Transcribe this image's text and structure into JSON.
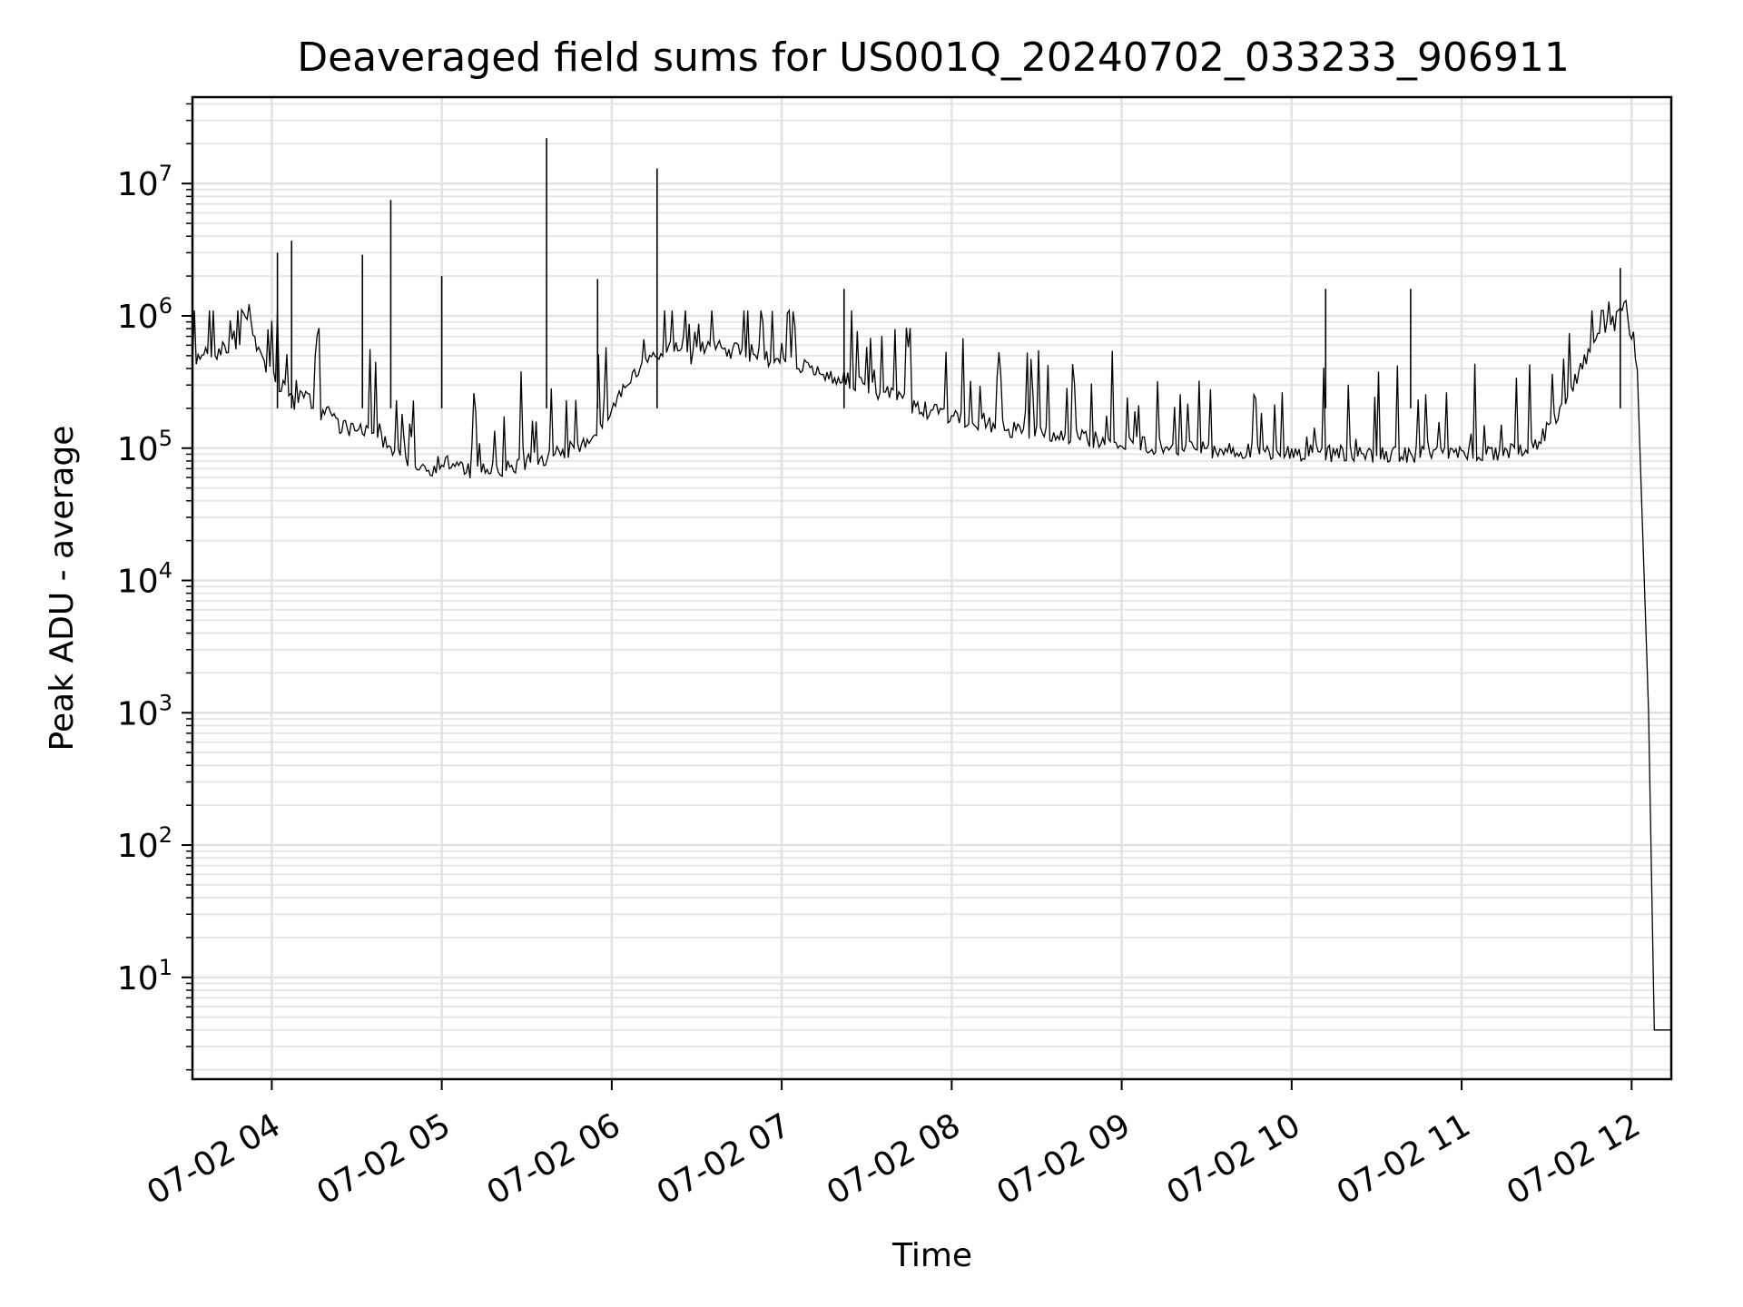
{
  "chart_data": {
    "type": "line",
    "title": "Deaveraged field sums for US001Q_20240702_033233_906911",
    "xlabel": "Time",
    "ylabel": "Peak ADU - average",
    "yscale": "log",
    "ylim": [
      1.7,
      45000000
    ],
    "xlim": [
      "2024-07-02 03:32",
      "2024-07-02 12:14"
    ],
    "x_ticks": [
      {
        "label": "07-02 04",
        "time": "2024-07-02 04:00"
      },
      {
        "label": "07-02 05",
        "time": "2024-07-02 05:00"
      },
      {
        "label": "07-02 06",
        "time": "2024-07-02 06:00"
      },
      {
        "label": "07-02 07",
        "time": "2024-07-02 07:00"
      },
      {
        "label": "07-02 08",
        "time": "2024-07-02 08:00"
      },
      {
        "label": "07-02 09",
        "time": "2024-07-02 09:00"
      },
      {
        "label": "07-02 10",
        "time": "2024-07-02 10:00"
      },
      {
        "label": "07-02 11",
        "time": "2024-07-02 11:00"
      },
      {
        "label": "07-02 12",
        "time": "2024-07-02 12:00"
      }
    ],
    "y_ticks": [
      {
        "base": "10",
        "exp": "1",
        "value": 10
      },
      {
        "base": "10",
        "exp": "2",
        "value": 100
      },
      {
        "base": "10",
        "exp": "3",
        "value": 1000
      },
      {
        "base": "10",
        "exp": "4",
        "value": 10000
      },
      {
        "base": "10",
        "exp": "5",
        "value": 100000
      },
      {
        "base": "10",
        "exp": "6",
        "value": 1000000
      },
      {
        "base": "10",
        "exp": "7",
        "value": 10000000
      }
    ],
    "grid": true,
    "line_color": "#000000",
    "series": [
      {
        "x": [
          "2024-07-02 03:32",
          "2024-07-02 03:36",
          "2024-07-02 03:40",
          "2024-07-02 03:44",
          "2024-07-02 03:48",
          "2024-07-02 03:52",
          "2024-07-02 03:56",
          "2024-07-02 04:00",
          "2024-07-02 04:04",
          "2024-07-02 04:08",
          "2024-07-02 04:12",
          "2024-07-02 04:16",
          "2024-07-02 04:20",
          "2024-07-02 04:24",
          "2024-07-02 04:28",
          "2024-07-02 04:32",
          "2024-07-02 04:36",
          "2024-07-02 04:40",
          "2024-07-02 04:44",
          "2024-07-02 04:48",
          "2024-07-02 04:52",
          "2024-07-02 04:56",
          "2024-07-02 05:00",
          "2024-07-02 05:04",
          "2024-07-02 05:08",
          "2024-07-02 05:12",
          "2024-07-02 05:16",
          "2024-07-02 05:20",
          "2024-07-02 05:24",
          "2024-07-02 05:28",
          "2024-07-02 05:32",
          "2024-07-02 05:36",
          "2024-07-02 05:40",
          "2024-07-02 05:44",
          "2024-07-02 05:48",
          "2024-07-02 05:52",
          "2024-07-02 05:56",
          "2024-07-02 06:00",
          "2024-07-02 06:04",
          "2024-07-02 06:08",
          "2024-07-02 06:12",
          "2024-07-02 06:16",
          "2024-07-02 06:20",
          "2024-07-02 06:24",
          "2024-07-02 06:28",
          "2024-07-02 06:32",
          "2024-07-02 06:36",
          "2024-07-02 06:40",
          "2024-07-02 06:44",
          "2024-07-02 06:48",
          "2024-07-02 06:52",
          "2024-07-02 06:56",
          "2024-07-02 07:00",
          "2024-07-02 07:04",
          "2024-07-02 07:08",
          "2024-07-02 07:12",
          "2024-07-02 07:16",
          "2024-07-02 07:20",
          "2024-07-02 07:24",
          "2024-07-02 07:28",
          "2024-07-02 07:32",
          "2024-07-02 07:36",
          "2024-07-02 07:40",
          "2024-07-02 07:44",
          "2024-07-02 07:48",
          "2024-07-02 07:52",
          "2024-07-02 07:56",
          "2024-07-02 08:00",
          "2024-07-02 08:04",
          "2024-07-02 08:08",
          "2024-07-02 08:12",
          "2024-07-02 08:16",
          "2024-07-02 08:20",
          "2024-07-02 08:24",
          "2024-07-02 08:28",
          "2024-07-02 08:32",
          "2024-07-02 08:36",
          "2024-07-02 08:40",
          "2024-07-02 08:44",
          "2024-07-02 08:48",
          "2024-07-02 08:52",
          "2024-07-02 08:56",
          "2024-07-02 09:00",
          "2024-07-02 09:04",
          "2024-07-02 09:08",
          "2024-07-02 09:12",
          "2024-07-02 09:16",
          "2024-07-02 09:20",
          "2024-07-02 09:24",
          "2024-07-02 09:28",
          "2024-07-02 09:32",
          "2024-07-02 09:36",
          "2024-07-02 09:40",
          "2024-07-02 09:44",
          "2024-07-02 09:48",
          "2024-07-02 09:52",
          "2024-07-02 09:56",
          "2024-07-02 10:00",
          "2024-07-02 10:04",
          "2024-07-02 10:08",
          "2024-07-02 10:12",
          "2024-07-02 10:16",
          "2024-07-02 10:20",
          "2024-07-02 10:24",
          "2024-07-02 10:28",
          "2024-07-02 10:32",
          "2024-07-02 10:36",
          "2024-07-02 10:40",
          "2024-07-02 10:44",
          "2024-07-02 10:48",
          "2024-07-02 10:52",
          "2024-07-02 10:56",
          "2024-07-02 11:00",
          "2024-07-02 11:04",
          "2024-07-02 11:08",
          "2024-07-02 11:12",
          "2024-07-02 11:16",
          "2024-07-02 11:20",
          "2024-07-02 11:24",
          "2024-07-02 11:28",
          "2024-07-02 11:32",
          "2024-07-02 11:36",
          "2024-07-02 11:40",
          "2024-07-02 11:44",
          "2024-07-02 11:48",
          "2024-07-02 11:52",
          "2024-07-02 11:56",
          "2024-07-02 12:00",
          "2024-07-02 12:02",
          "2024-07-02 12:04",
          "2024-07-02 12:06",
          "2024-07-02 12:08",
          "2024-07-02 12:10",
          "2024-07-02 12:14"
        ],
        "y": [
          420000,
          560000,
          520000,
          600000,
          800000,
          1000000,
          500000,
          350000,
          280000,
          220000,
          250000,
          180000,
          200000,
          150000,
          140000,
          130000,
          150000,
          110000,
          90000,
          85000,
          75000,
          70000,
          80000,
          75000,
          70000,
          65000,
          70000,
          68000,
          72000,
          75000,
          80000,
          85000,
          90000,
          95000,
          100000,
          120000,
          150000,
          200000,
          280000,
          350000,
          420000,
          500000,
          550000,
          600000,
          620000,
          600000,
          580000,
          560000,
          540000,
          520000,
          500000,
          480000,
          460000,
          440000,
          400000,
          380000,
          360000,
          340000,
          320000,
          300000,
          280000,
          260000,
          240000,
          220000,
          200000,
          190000,
          180000,
          170000,
          160000,
          155000,
          150000,
          145000,
          140000,
          135000,
          130000,
          128000,
          125000,
          122000,
          120000,
          118000,
          115000,
          112000,
          110000,
          108000,
          106000,
          104000,
          102000,
          100000,
          100000,
          98000,
          97000,
          96000,
          95000,
          95000,
          94000,
          94000,
          93000,
          93000,
          92000,
          92000,
          92000,
          91000,
          91000,
          90000,
          90000,
          90000,
          90000,
          90000,
          90000,
          90000,
          90000,
          90000,
          90000,
          90000,
          90000,
          91000,
          92000,
          95000,
          100000,
          120000,
          150000,
          220000,
          330000,
          500000,
          800000,
          1000000,
          1000000,
          900000,
          400000,
          20000,
          1000,
          4,
          4,
          4
        ]
      }
    ],
    "spikes": [
      {
        "x": "2024-07-02 04:02",
        "y": 3000000
      },
      {
        "x": "2024-07-02 04:07",
        "y": 3700000
      },
      {
        "x": "2024-07-02 04:32",
        "y": 2900000
      },
      {
        "x": "2024-07-02 04:42",
        "y": 7500000
      },
      {
        "x": "2024-07-02 05:00",
        "y": 2000000
      },
      {
        "x": "2024-07-02 05:37",
        "y": 22000000
      },
      {
        "x": "2024-07-02 05:55",
        "y": 1900000
      },
      {
        "x": "2024-07-02 06:16",
        "y": 13000000
      },
      {
        "x": "2024-07-02 07:22",
        "y": 1600000
      },
      {
        "x": "2024-07-02 10:12",
        "y": 1600000
      },
      {
        "x": "2024-07-02 10:42",
        "y": 1600000
      },
      {
        "x": "2024-07-02 11:56",
        "y": 2300000
      }
    ]
  }
}
